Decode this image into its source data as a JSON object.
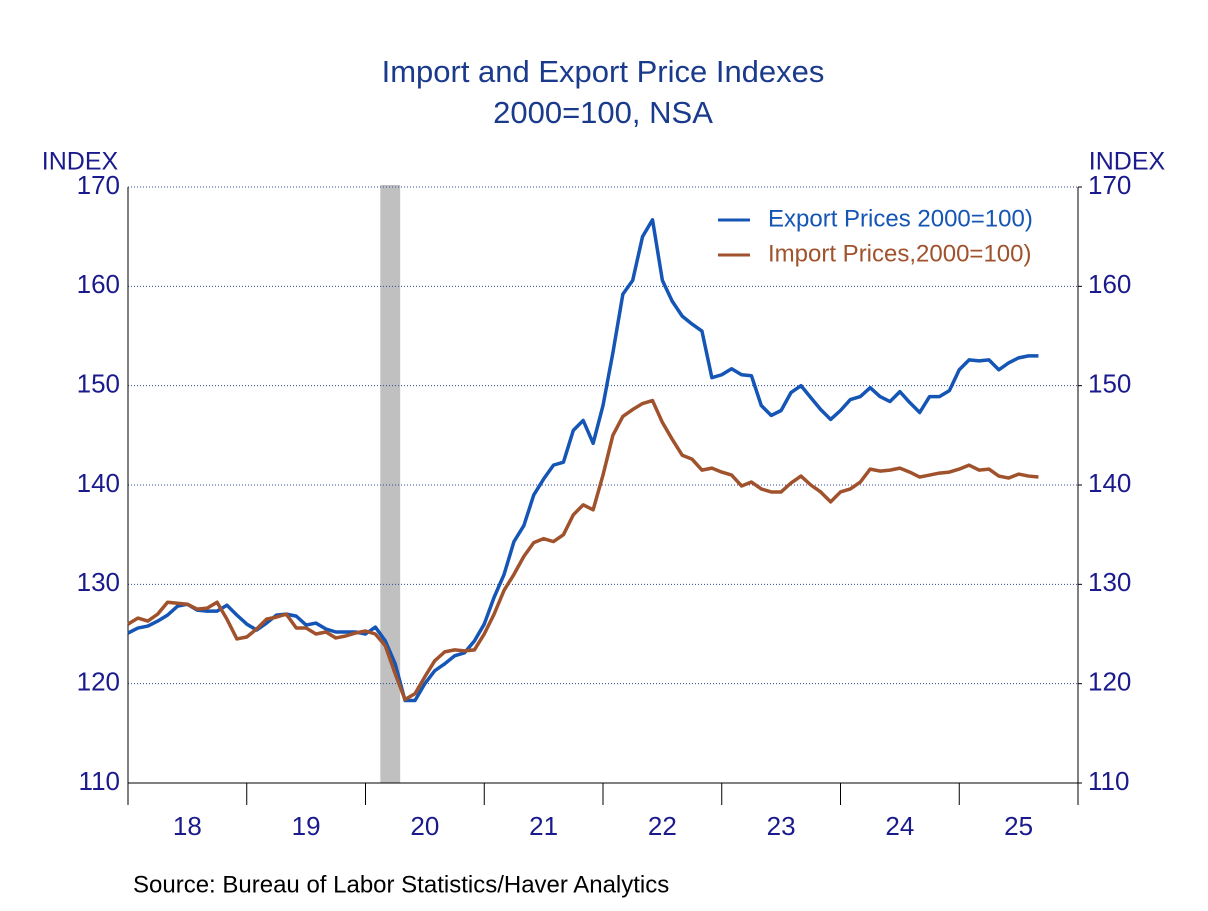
{
  "chart_data": {
    "type": "line",
    "title": "Import and Export Price Indexes",
    "subtitle": "2000=100, NSA",
    "y_label": "INDEX",
    "y2_label": "INDEX",
    "source": "Source:  Bureau of Labor Statistics/Haver Analytics",
    "xlim": [
      2018,
      2026
    ],
    "xticks": [
      {
        "value": 2018.5,
        "label": "18"
      },
      {
        "value": 2019.5,
        "label": "19"
      },
      {
        "value": 2020.5,
        "label": "20"
      },
      {
        "value": 2021.5,
        "label": "21"
      },
      {
        "value": 2022.5,
        "label": "22"
      },
      {
        "value": 2023.5,
        "label": "23"
      },
      {
        "value": 2024.5,
        "label": "24"
      },
      {
        "value": 2025.5,
        "label": "25"
      }
    ],
    "xticks_minor": [
      2018,
      2019,
      2020,
      2021,
      2022,
      2023,
      2024,
      2025,
      2026
    ],
    "ylim": [
      110,
      170
    ],
    "yticks": [
      110,
      120,
      130,
      140,
      150,
      160,
      170
    ],
    "y2lim": [
      110,
      170
    ],
    "y2ticks": [
      110,
      120,
      130,
      140,
      150,
      160,
      170
    ],
    "grid": true,
    "legend": "upper right",
    "recession": [
      2020.125,
      2020.292
    ],
    "recession_color": "#c0c0c0",
    "x": [
      2018,
      2018.083,
      2018.167,
      2018.25,
      2018.333,
      2018.417,
      2018.5,
      2018.583,
      2018.667,
      2018.75,
      2018.833,
      2018.917,
      2019,
      2019.083,
      2019.167,
      2019.25,
      2019.333,
      2019.417,
      2019.5,
      2019.583,
      2019.667,
      2019.75,
      2019.833,
      2019.917,
      2020,
      2020.083,
      2020.167,
      2020.25,
      2020.333,
      2020.417,
      2020.5,
      2020.583,
      2020.667,
      2020.75,
      2020.833,
      2020.917,
      2021,
      2021.083,
      2021.167,
      2021.25,
      2021.333,
      2021.417,
      2021.5,
      2021.583,
      2021.667,
      2021.75,
      2021.833,
      2021.917,
      2022,
      2022.083,
      2022.167,
      2022.25,
      2022.333,
      2022.417,
      2022.5,
      2022.583,
      2022.667,
      2022.75,
      2022.833,
      2022.917,
      2023,
      2023.083,
      2023.167,
      2023.25,
      2023.333,
      2023.417,
      2023.5,
      2023.583,
      2023.667,
      2023.75,
      2023.833,
      2023.917,
      2024,
      2024.083,
      2024.167,
      2024.25,
      2024.333,
      2024.417,
      2024.5,
      2024.583,
      2024.667,
      2024.75,
      2024.833,
      2024.917,
      2025,
      2025.083,
      2025.167,
      2025.25,
      2025.333,
      2025.417,
      2025.5,
      2025.583,
      2025.667
    ],
    "series": [
      {
        "name": "Export Prices 2000=100)",
        "color": "#1455b5",
        "values": [
          125.1,
          125.6,
          125.8,
          126.3,
          126.9,
          127.8,
          128.0,
          127.4,
          127.3,
          127.3,
          127.9,
          126.9,
          126.0,
          125.4,
          126.1,
          126.9,
          127.0,
          126.8,
          125.9,
          126.1,
          125.5,
          125.2,
          125.2,
          125.2,
          125.0,
          125.7,
          124.3,
          122.0,
          118.3,
          118.3,
          120.0,
          121.3,
          122.0,
          122.8,
          123.1,
          124.3,
          126.0,
          128.7,
          131.0,
          134.3,
          135.9,
          139.0,
          140.6,
          142.0,
          142.3,
          145.5,
          146.5,
          144.2,
          148.0,
          153.3,
          159.2,
          160.6,
          165.0,
          166.7,
          160.6,
          158.5,
          157.0,
          156.2,
          155.5,
          150.8,
          151.1,
          151.7,
          151.1,
          151.0,
          148.0,
          147.0,
          147.5,
          149.3,
          150.0,
          148.8,
          147.6,
          146.6,
          147.5,
          148.6,
          148.9,
          149.8,
          148.9,
          148.4,
          149.4,
          148.3,
          147.3,
          148.9,
          148.9,
          149.5,
          151.6,
          152.6,
          152.5,
          152.6,
          151.6,
          152.3,
          152.8,
          153.0,
          153.0
        ]
      },
      {
        "name": "Import Prices,2000=100)",
        "color": "#a0522d",
        "values": [
          126.0,
          126.6,
          126.3,
          127.0,
          128.2,
          128.1,
          128.0,
          127.5,
          127.6,
          128.2,
          126.5,
          124.5,
          124.7,
          125.5,
          126.5,
          126.7,
          127.0,
          125.6,
          125.6,
          125.0,
          125.2,
          124.6,
          124.8,
          125.1,
          125.3,
          125.0,
          123.8,
          121.0,
          118.4,
          119.0,
          120.7,
          122.3,
          123.2,
          123.4,
          123.3,
          123.4,
          125.0,
          127.0,
          129.4,
          131.0,
          132.8,
          134.2,
          134.6,
          134.3,
          135.0,
          137.0,
          138.0,
          137.5,
          141.0,
          145.0,
          146.9,
          147.6,
          148.2,
          148.5,
          146.3,
          144.6,
          143.0,
          142.6,
          141.5,
          141.7,
          141.3,
          141.0,
          139.9,
          140.3,
          139.6,
          139.3,
          139.3,
          140.2,
          140.9,
          140.0,
          139.3,
          138.3,
          139.3,
          139.6,
          140.3,
          141.6,
          141.4,
          141.5,
          141.7,
          141.3,
          140.8,
          141.0,
          141.2,
          141.3,
          141.6,
          142.0,
          141.5,
          141.6,
          140.9,
          140.7,
          141.1,
          140.9,
          140.8
        ]
      }
    ]
  }
}
